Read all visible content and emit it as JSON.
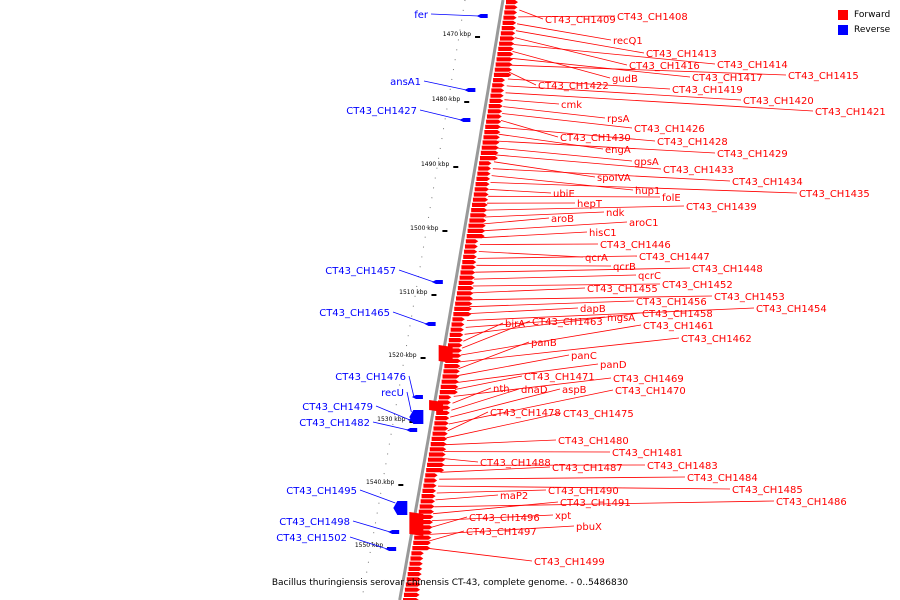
{
  "colors": {
    "forward": "#ff0000",
    "reverse": "#0000ff",
    "backbone": "#999999",
    "tick": "#000000"
  },
  "legend": {
    "forward_label": "Forward",
    "reverse_label": "Reverse"
  },
  "caption": "Bacillus thuringiensis serovar chinensis CT-43, complete genome. - 0..5486830",
  "scale_ticks": [
    {
      "label": "1470 kbp"
    },
    {
      "label": "1480 kbp"
    },
    {
      "label": "1490 kbp"
    },
    {
      "label": "1500 kbp"
    },
    {
      "label": "1510 kbp"
    },
    {
      "label": "1520 kbp"
    },
    {
      "label": "1530 kbp"
    },
    {
      "label": "1540 kbp"
    },
    {
      "label": "1550 kbp"
    }
  ],
  "reverse_labels": [
    "fer",
    "ansA1",
    "CT43_CH1427",
    "CT43_CH1457",
    "CT43_CH1465",
    "CT43_CH1476",
    "recU",
    "CT43_CH1479",
    "CT43_CH1482",
    "CT43_CH1495",
    "CT43_CH1498",
    "CT43_CH1502"
  ],
  "forward_labels": [
    "CT43_CH1409",
    "CT43_CH1408",
    "recQ1",
    "CT43_CH1413",
    "CT43_CH1416",
    "CT43_CH1414",
    "gudB",
    "CT43_CH1417",
    "CT43_CH1415",
    "CT43_CH1422",
    "CT43_CH1419",
    "CT43_CH1420",
    "CT43_CH1421",
    "cmk",
    "rpsA",
    "CT43_CH1426",
    "CT43_CH1430",
    "CT43_CH1428",
    "engA",
    "CT43_CH1429",
    "gpsA",
    "CT43_CH1433",
    "spoIVA",
    "CT43_CH1434",
    "hup1",
    "CT43_CH1435",
    "ubiE",
    "folE",
    "hepT",
    "CT43_CH1439",
    "ndk",
    "aroB",
    "aroC1",
    "hisC1",
    "CT43_CH1446",
    "qcrA",
    "CT43_CH1447",
    "qcrB",
    "CT43_CH1448",
    "qcrC",
    "CT43_CH1452",
    "CT43_CH1455",
    "CT43_CH1453",
    "CT43_CH1456",
    "dapB",
    "CT43_CH1454",
    "mgsA",
    "CT43_CH1458",
    "birA",
    "CT43_CH1463",
    "CT43_CH1461",
    "CT43_CH1462",
    "panB",
    "panC",
    "panD",
    "CT43_CH1471",
    "CT43_CH1469",
    "nth",
    "dnaD",
    "aspB",
    "CT43_CH1470",
    "CT43_CH1478",
    "CT43_CH1475",
    "CT43_CH1480",
    "CT43_CH1481",
    "CT43_CH1488",
    "CT43_CH1483",
    "CT43_CH1487",
    "CT43_CH1484",
    "CT43_CH1485",
    "CT43_CH1490",
    "maP2",
    "CT43_CH1486",
    "CT43_CH1491",
    "xpt",
    "CT43_CH1496",
    "pbuX",
    "CT43_CH1497",
    "CT43_CH1499"
  ]
}
